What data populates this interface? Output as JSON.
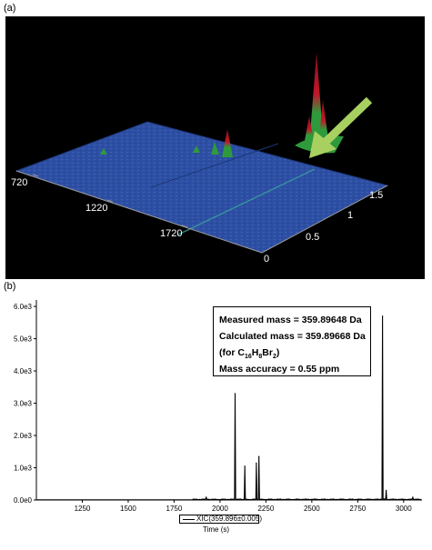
{
  "panel_a": {
    "label": "(a)",
    "x_ticks": [
      "720",
      "1220",
      "1720"
    ],
    "y_ticks": [
      "0",
      "0.5",
      "1",
      "1.5"
    ],
    "colors": {
      "background": "#000000",
      "surface": "#2d4fa3",
      "peak_low": "#2f9a3c",
      "peak_high": "#c0182a",
      "arrow": "#a8d060"
    }
  },
  "panel_b": {
    "label": "(b)",
    "info_lines": {
      "measured": "Measured mass = 359.89648 Da",
      "calculated": "Calculated mass = 359.89668 Da",
      "formula_prefix": "(for C",
      "formula_c": "16",
      "formula_h": "H",
      "formula_h_n": "8",
      "formula_br": "Br",
      "formula_br_n": "2",
      "formula_suffix": ")",
      "accuracy": "Mass accuracy = 0.55 ppm"
    }
  },
  "chart_data": [
    {
      "type": "surface3d",
      "x_ticks": [
        720,
        1220,
        1720
      ],
      "y_ticks": [
        0,
        0.5,
        1,
        1.5
      ],
      "peaks": [
        {
          "x_ratio": 0.82,
          "y_ratio": 0.75,
          "height": 1.0
        },
        {
          "x_ratio": 0.46,
          "y_ratio": 0.55,
          "height": 0.25
        },
        {
          "x_ratio": 0.3,
          "y_ratio": 0.6,
          "height": 0.05
        }
      ]
    },
    {
      "type": "line",
      "xlabel": "Time (s)",
      "ylabel": "",
      "xlim": [
        1000,
        3100
      ],
      "ylim": [
        0,
        6200
      ],
      "x_ticks": [
        1250,
        1500,
        1750,
        2000,
        2250,
        2500,
        2750,
        3000
      ],
      "y_ticks": [
        0,
        1000,
        2000,
        3000,
        4000,
        5000,
        6000
      ],
      "y_tick_labels": [
        "0.0e0",
        "1.0e3",
        "2.0e3",
        "3.0e3",
        "4.0e3",
        "5.0e3",
        "6.0e3"
      ],
      "x_tick_labels": [
        "1250",
        "1500",
        "1750",
        "2000",
        "2250",
        "2500",
        "2750",
        "3000"
      ],
      "series": [
        {
          "name": "XIC(359.896±0.005)",
          "peaks": [
            {
              "t": 1925,
              "h": 80
            },
            {
              "t": 2082,
              "h": 3300
            },
            {
              "t": 2135,
              "h": 1050
            },
            {
              "t": 2198,
              "h": 1150
            },
            {
              "t": 2212,
              "h": 1350
            },
            {
              "t": 2885,
              "h": 5700
            },
            {
              "t": 2905,
              "h": 300
            },
            {
              "t": 3050,
              "h": 80
            }
          ]
        }
      ]
    }
  ]
}
